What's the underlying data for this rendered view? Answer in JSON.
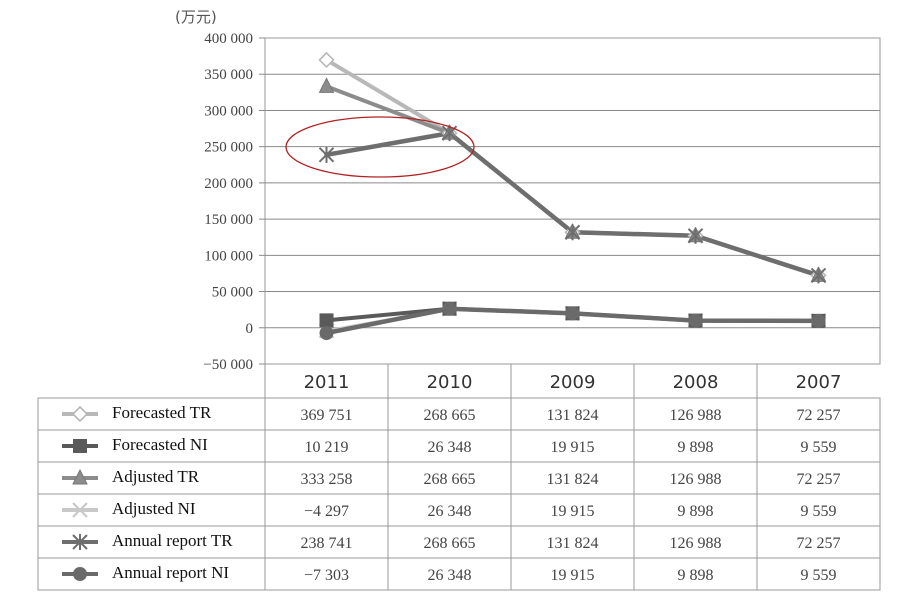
{
  "chart_data": {
    "type": "line",
    "title": "",
    "unit_label": "(万元)",
    "categories": [
      "2011",
      "2010",
      "2009",
      "2008",
      "2007"
    ],
    "ylim": [
      -50000,
      400000
    ],
    "ytick_step": 50000,
    "ytick_labels": [
      "400 000",
      "350 000",
      "300 000",
      "250 000",
      "200 000",
      "150 000",
      "100 000",
      "50 000",
      "0",
      "−50 000"
    ],
    "grid": true,
    "legend_position": "bottom-left table",
    "series": [
      {
        "name": "Forecasted TR",
        "values": [
          369751,
          268665,
          131824,
          126988,
          72257
        ],
        "display": [
          "369 751",
          "268 665",
          "131 824",
          "126 988",
          "72 257"
        ],
        "color": "#b8b8b8",
        "marker": "diamond"
      },
      {
        "name": "Forecasted NI",
        "values": [
          10219,
          26348,
          19915,
          9898,
          9559
        ],
        "display": [
          "10 219",
          "26 348",
          "19 915",
          "9 898",
          "9 559"
        ],
        "color": "#5a5a5a",
        "marker": "square"
      },
      {
        "name": "Adjusted TR",
        "values": [
          333258,
          268665,
          131824,
          126988,
          72257
        ],
        "display": [
          "333 258",
          "268 665",
          "131 824",
          "126 988",
          "72 257"
        ],
        "color": "#8c8c8c",
        "marker": "triangle"
      },
      {
        "name": "Adjusted NI",
        "values": [
          -4297,
          26348,
          19915,
          9898,
          9559
        ],
        "display": [
          "−4 297",
          "26 348",
          "19 915",
          "9 898",
          "9 559"
        ],
        "color": "#c8c8c8",
        "marker": "x"
      },
      {
        "name": "Annual report TR",
        "values": [
          238741,
          268665,
          131824,
          126988,
          72257
        ],
        "display": [
          "238 741",
          "268 665",
          "131 824",
          "126 988",
          "72 257"
        ],
        "color": "#6e6e6e",
        "marker": "star"
      },
      {
        "name": "Annual report NI",
        "values": [
          -7303,
          26348,
          19915,
          9898,
          9559
        ],
        "display": [
          "−7 303",
          "26 348",
          "19 915",
          "9 898",
          "9 559"
        ],
        "color": "#6a6a6a",
        "marker": "circle"
      }
    ],
    "annotation": {
      "shape": "ellipse",
      "color": "#b22222",
      "around": "2011–2010 Annual report TR"
    }
  }
}
